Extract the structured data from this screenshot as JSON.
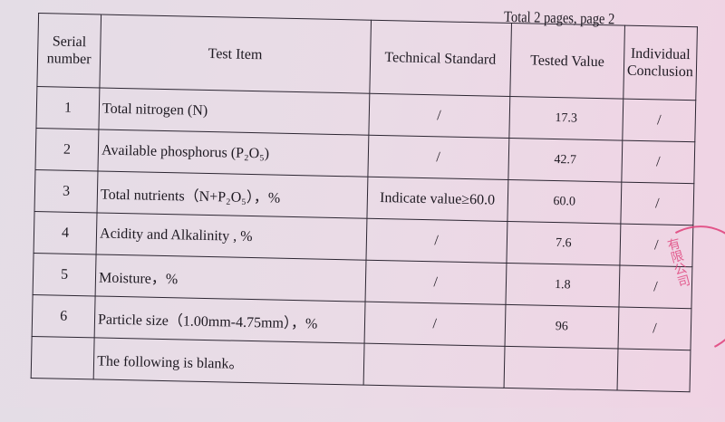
{
  "header": {
    "page_info": "Total 2 pages, page 2"
  },
  "table": {
    "columns": [
      "Serial number",
      "Test Item",
      "Technical Standard",
      "Tested Value",
      "Individual Conclusion"
    ],
    "rows": [
      {
        "serial": "1",
        "item": "Total nitrogen (N)",
        "standard": "/",
        "value": "17.3",
        "conclusion": "/"
      },
      {
        "serial": "2",
        "item": "Available phosphorus (P₂O₅)",
        "standard": "/",
        "value": "42.7",
        "conclusion": "/"
      },
      {
        "serial": "3",
        "item": "Total nutrients（N+P₂O₅），%",
        "standard": "Indicate value≥60.0",
        "value": "60.0",
        "conclusion": "/"
      },
      {
        "serial": "4",
        "item": "Acidity and Alkalinity , %",
        "standard": "/",
        "value": "7.6",
        "conclusion": "/"
      },
      {
        "serial": "5",
        "item": "Moisture，%",
        "standard": "/",
        "value": "1.8",
        "conclusion": "/"
      },
      {
        "serial": "6",
        "item": "Particle size（1.00mm-4.75mm），%",
        "standard": "/",
        "value": "96",
        "conclusion": "/"
      }
    ],
    "blank_note": "The following is blank。"
  },
  "stamp": {
    "text": "有限公司",
    "color": "#e0407a"
  }
}
